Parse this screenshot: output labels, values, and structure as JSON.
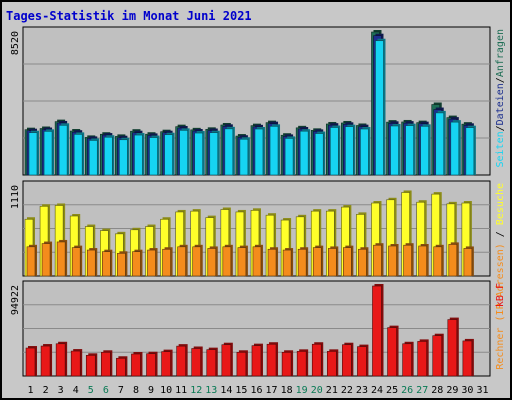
{
  "colors": {
    "background": "#c8c8c8",
    "plot_background": "#c0c0c0",
    "title": "#0000cc",
    "hits": "#1e6e55",
    "files": "#1c2f8e",
    "pages": "#16d4f2",
    "visits": "#ffff2a",
    "sites": "#f48c1c",
    "kbytes": "#e81818",
    "weekend_day": "#0a7a55",
    "weekday": "#000000"
  },
  "chart_data": [
    {
      "type": "bar",
      "title": "Tages-Statistik im Monat Juni 2021",
      "ylabel_parts": [
        "Seiten",
        "/",
        "Dateien",
        "/",
        "Anfragen"
      ],
      "ytick": "8520",
      "ylim": [
        0,
        8520
      ],
      "categories": [
        "1",
        "2",
        "3",
        "4",
        "5",
        "6",
        "7",
        "8",
        "9",
        "10",
        "11",
        "12",
        "13",
        "14",
        "15",
        "16",
        "17",
        "18",
        "19",
        "20",
        "21",
        "22",
        "23",
        "24",
        "25",
        "26",
        "27",
        "28",
        "29",
        "30",
        "31"
      ],
      "weekend_days": [
        "5",
        "6",
        "12",
        "13",
        "19",
        "20",
        "26",
        "27"
      ],
      "series": [
        {
          "name": "Anfragen",
          "values": [
            2700,
            2770,
            3180,
            2620,
            2240,
            2430,
            2300,
            2610,
            2430,
            2580,
            2880,
            2690,
            2720,
            2980,
            2320,
            2940,
            3120,
            2370,
            2810,
            2660,
            3040,
            3100,
            2950,
            8520,
            3150,
            3160,
            3120,
            4200,
            3420,
            3030,
            0
          ]
        },
        {
          "name": "Dateien",
          "values": [
            2640,
            2710,
            3100,
            2550,
            2180,
            2380,
            2220,
            2520,
            2360,
            2520,
            2800,
            2620,
            2650,
            2900,
            2250,
            2870,
            3060,
            2300,
            2740,
            2600,
            2970,
            3020,
            2880,
            8300,
            3080,
            3090,
            3060,
            3900,
            3330,
            2960,
            0
          ]
        },
        {
          "name": "Seiten",
          "values": [
            2520,
            2600,
            2960,
            2420,
            2060,
            2250,
            2100,
            2380,
            2230,
            2400,
            2660,
            2500,
            2520,
            2750,
            2130,
            2740,
            2900,
            2180,
            2610,
            2470,
            2830,
            2880,
            2740,
            8000,
            2920,
            2940,
            2900,
            3700,
            3150,
            2820,
            0
          ]
        }
      ]
    },
    {
      "type": "bar",
      "ylabel_parts": [
        "Rechner",
        " (IP-Adressen)",
        " / ",
        "Besuche"
      ],
      "ytick": "1110",
      "ylim": [
        0,
        1110
      ],
      "categories": [
        "1",
        "2",
        "3",
        "4",
        "5",
        "6",
        "7",
        "8",
        "9",
        "10",
        "11",
        "12",
        "13",
        "14",
        "15",
        "16",
        "17",
        "18",
        "19",
        "20",
        "21",
        "22",
        "23",
        "24",
        "25",
        "26",
        "27",
        "28",
        "29",
        "30",
        "31"
      ],
      "series": [
        {
          "name": "Besuche",
          "values": [
            700,
            860,
            870,
            740,
            610,
            560,
            520,
            570,
            610,
            700,
            790,
            800,
            720,
            820,
            790,
            810,
            750,
            690,
            730,
            800,
            800,
            850,
            760,
            900,
            940,
            1030,
            910,
            1010,
            890,
            900,
            0
          ]
        },
        {
          "name": "Rechner (IP-Adressen)",
          "values": [
            360,
            400,
            420,
            350,
            320,
            300,
            280,
            300,
            320,
            330,
            360,
            360,
            340,
            360,
            350,
            360,
            330,
            320,
            330,
            350,
            340,
            350,
            330,
            380,
            370,
            380,
            370,
            360,
            390,
            340,
            0
          ]
        }
      ]
    },
    {
      "type": "bar",
      "ylabel_parts": [
        "kB F"
      ],
      "ytick": "94922",
      "ylim": [
        0,
        94922
      ],
      "categories": [
        "1",
        "2",
        "3",
        "4",
        "5",
        "6",
        "7",
        "8",
        "9",
        "10",
        "11",
        "12",
        "13",
        "14",
        "15",
        "16",
        "17",
        "18",
        "19",
        "20",
        "21",
        "22",
        "23",
        "24",
        "25",
        "26",
        "27",
        "28",
        "29",
        "30",
        "31"
      ],
      "series": [
        {
          "name": "kB F",
          "values": [
            29500,
            31600,
            34000,
            26300,
            21800,
            25000,
            18700,
            23200,
            23500,
            25700,
            31500,
            29000,
            27800,
            33000,
            25000,
            32000,
            33500,
            25000,
            26000,
            33500,
            26000,
            33000,
            31000,
            94922,
            51000,
            34000,
            36500,
            42500,
            59500,
            37000,
            0
          ]
        }
      ]
    }
  ]
}
